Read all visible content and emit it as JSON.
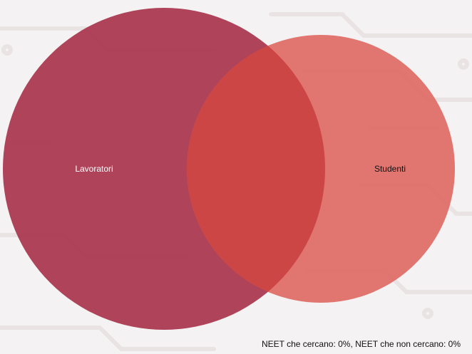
{
  "chart_data": {
    "type": "venn",
    "sets": [
      {
        "name": "Lavoratori",
        "color": "#a8364d"
      },
      {
        "name": "Studenti",
        "color": "#df6760"
      }
    ],
    "overlap_color": "#cc4444"
  },
  "footer": {
    "text": "NEET che cercano: 0%, NEET che non cercano: 0%"
  }
}
